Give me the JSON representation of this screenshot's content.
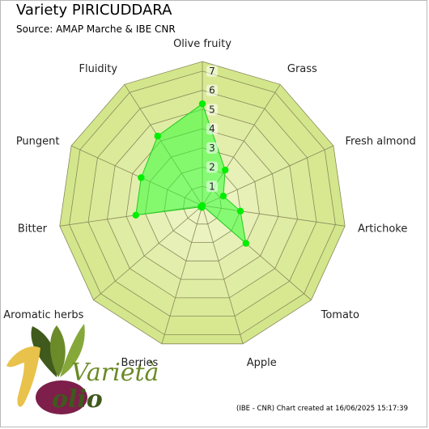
{
  "title": "Variety PIRICUDDARA",
  "subtitle": "Source: AMAP Marche & IBE CNR",
  "footer": "(IBE - CNR) Chart created at 16/06/2025 15:17:39",
  "logo": {
    "word1": "Varietà",
    "word2": "olio",
    "number": "1"
  },
  "colors": {
    "ring_fill": "#d4e68c",
    "ring_fill_inner": "#ecf4c4",
    "grid_line": "#8a8a5a",
    "series_fill": "#33ff33",
    "series_stroke": "#22cc22",
    "point": "#00ee00"
  },
  "chart_data": {
    "type": "radar",
    "title": "Variety PIRICUDDARA",
    "subtitle": "Source: AMAP Marche & IBE CNR",
    "axes": [
      "Olive fruity",
      "Grass",
      "Fresh almond",
      "Artichoke",
      "Tomato",
      "Apple",
      "Berries",
      "Aromatic herbs",
      "Bitter",
      "Pungent",
      "Fluidity"
    ],
    "ticks": [
      "1",
      "2",
      "3",
      "4",
      "5",
      "6",
      "7"
    ],
    "range": [
      0,
      7.5
    ],
    "grid": true,
    "series": [
      {
        "values": [
          5.3,
          2.2,
          1.2,
          2.0,
          3.0,
          0.0,
          0.1,
          0.1,
          3.5,
          3.5,
          4.3
        ]
      }
    ]
  }
}
